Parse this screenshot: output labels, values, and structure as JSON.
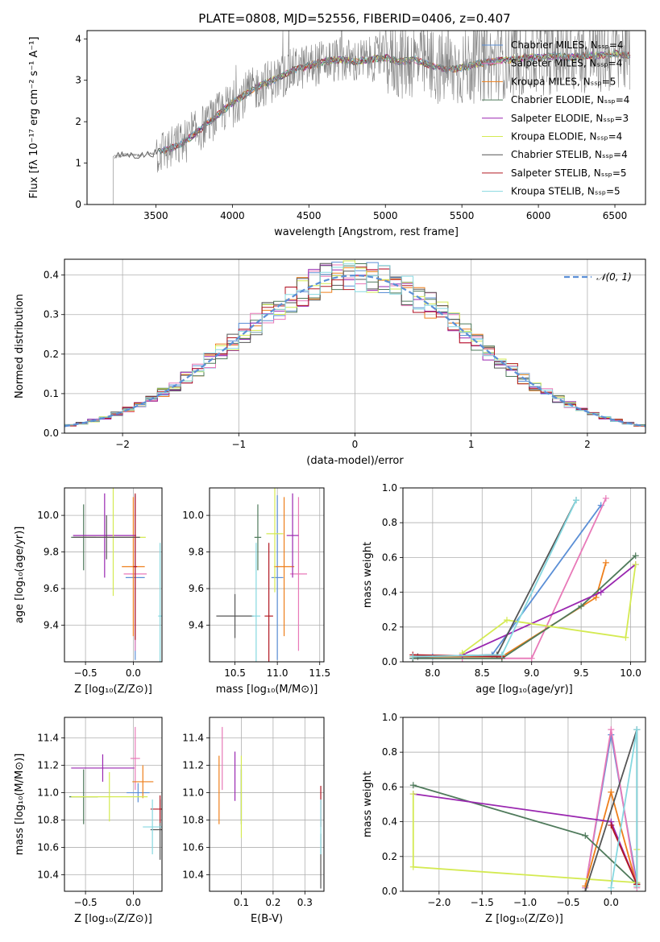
{
  "figure": {
    "title": "PLATE=0808, MJD=52556, FIBERID=0406, z=0.407"
  },
  "colors": {
    "Chabrier MILES": "#5b8fd6",
    "Salpeter MILES": "#e879b8",
    "Kroupa MILES": "#ee7f1b",
    "Chabrier ELODIE": "#4f7a5b",
    "Salpeter ELODIE": "#9a27b0",
    "Kroupa ELODIE": "#d4ea52",
    "Chabrier STELIB": "#555555",
    "Salpeter STELIB": "#b21a24",
    "Kroupa STELIB": "#86d8e0",
    "data": "#808080",
    "normal": "#5b8fd6"
  },
  "chart_data": [
    {
      "id": "spectrum",
      "type": "line",
      "xlabel": "wavelength [Angstrom, rest frame]",
      "ylabel": "Flux [fλ 10⁻¹⁷ erg cm⁻² s⁻¹ A⁻¹]",
      "xlim": [
        3050,
        6700
      ],
      "ylim": [
        0,
        4.2
      ],
      "xticks": [
        "3500",
        "4000",
        "4500",
        "5000",
        "5500",
        "6000",
        "6500"
      ],
      "yticks": [
        "0",
        "1",
        "2",
        "3",
        "4"
      ],
      "legend_position": "upper right",
      "series": [
        {
          "name": "Chabrier MILES, N_SSP=4"
        },
        {
          "name": "Salpeter MILES, N_SSP=4"
        },
        {
          "name": "Kroupa MILES, N_SSP=5"
        },
        {
          "name": "Chabrier ELODIE, N_SSP=4"
        },
        {
          "name": "Salpeter ELODIE, N_SSP=3"
        },
        {
          "name": "Kroupa ELODIE, N_SSP=4"
        },
        {
          "name": "Chabrier STELIB, N_SSP=4"
        },
        {
          "name": "Salpeter STELIB, N_SSP=5"
        },
        {
          "name": "Kroupa STELIB, N_SSP=5"
        }
      ],
      "data_envelope": {
        "x": [
          3220,
          3300,
          3400,
          3500,
          3600,
          3700,
          3800,
          3900,
          4000,
          4100,
          4200,
          4300,
          4400,
          4500,
          4600,
          4700,
          4800,
          4900,
          5000,
          5100,
          5200,
          5300,
          5400,
          5500,
          5600,
          5700,
          5800,
          5900,
          6000,
          6100,
          6200,
          6300,
          6400,
          6500,
          6600
        ],
        "y": [
          1.15,
          1.2,
          1.18,
          1.25,
          1.35,
          1.55,
          1.85,
          2.15,
          2.45,
          2.7,
          2.9,
          3.05,
          3.25,
          3.35,
          3.45,
          3.5,
          3.45,
          3.5,
          3.55,
          3.45,
          3.5,
          3.35,
          3.25,
          3.3,
          3.4,
          3.45,
          3.5,
          3.55,
          3.55,
          3.6,
          3.55,
          3.6,
          3.6,
          3.65,
          3.6
        ]
      }
    },
    {
      "id": "residuals",
      "type": "step",
      "xlabel": "(data-model)/error",
      "ylabel": "Normed distribution",
      "xlim": [
        -2.5,
        2.5
      ],
      "ylim": [
        0,
        0.44
      ],
      "xticks": [
        "−2",
        "−1",
        "0",
        "1",
        "2"
      ],
      "yticks": [
        "0.0",
        "0.1",
        "0.2",
        "0.3",
        "0.4"
      ],
      "legend": "𝒩(0, 1)",
      "legend_position": "upper right",
      "bin_width": 0.1
    },
    {
      "id": "age_vs_Z",
      "type": "errorbar",
      "xlabel": "Z [log₁₀(Z/Z⊙)]",
      "ylabel": "age  [log₁₀(age/yr)]",
      "xlim": [
        -0.72,
        0.3
      ],
      "ylim": [
        9.2,
        10.15
      ],
      "xticks": [
        "−0.5",
        "0.0"
      ],
      "yticks": [
        "9.4",
        "9.6",
        "9.8",
        "10.0"
      ],
      "points": [
        {
          "model": "Chabrier MILES",
          "x": 0.02,
          "y": 9.66,
          "xerr": 0.1,
          "yerr": 0.45
        },
        {
          "model": "Salpeter MILES",
          "x": 0.02,
          "y": 9.68,
          "xerr": 0.12,
          "yerr": 0.42
        },
        {
          "model": "Kroupa MILES",
          "x": 0.0,
          "y": 9.72,
          "xerr": 0.12,
          "yerr": 0.38
        },
        {
          "model": "Chabrier ELODIE",
          "x": -0.52,
          "y": 9.88,
          "xerr": 0.13,
          "yerr": 0.18
        },
        {
          "model": "Salpeter ELODIE",
          "x": -0.3,
          "y": 9.89,
          "xerr": 0.33,
          "yerr": 0.23
        },
        {
          "model": "Kroupa ELODIE",
          "x": -0.21,
          "y": 9.88,
          "xerr": 0.34,
          "yerr": 0.32
        },
        {
          "model": "Chabrier STELIB",
          "x": -0.28,
          "y": 9.88,
          "xerr": 0.35,
          "yerr": 0.12
        },
        {
          "model": "Salpeter STELIB",
          "x": 0.02,
          "y": 9.72,
          "xerr": 0.02,
          "yerr": 0.4
        },
        {
          "model": "Kroupa STELIB",
          "x": 0.28,
          "y": 9.45,
          "xerr": 0.02,
          "yerr": 0.4
        }
      ]
    },
    {
      "id": "age_vs_mass",
      "type": "errorbar",
      "xlabel": "mass [log₁₀(M/M⊙)]",
      "xlim": [
        10.2,
        11.55
      ],
      "ylim": [
        9.2,
        10.15
      ],
      "xticks": [
        "10.5",
        "11.0",
        "11.5"
      ],
      "yticks": [
        "9.4",
        "9.6",
        "9.8",
        "10.0"
      ],
      "points": [
        {
          "model": "Chabrier MILES",
          "x": 11.0,
          "y": 9.66,
          "xerr": 0.07,
          "yerr": 0.45
        },
        {
          "model": "Salpeter MILES",
          "x": 11.25,
          "y": 9.68,
          "xerr": 0.1,
          "yerr": 0.42
        },
        {
          "model": "Kroupa MILES",
          "x": 11.08,
          "y": 9.72,
          "xerr": 0.12,
          "yerr": 0.38
        },
        {
          "model": "Chabrier ELODIE",
          "x": 10.77,
          "y": 9.88,
          "xerr": 0.04,
          "yerr": 0.18
        },
        {
          "model": "Salpeter ELODIE",
          "x": 11.18,
          "y": 9.89,
          "xerr": 0.07,
          "yerr": 0.23
        },
        {
          "model": "Kroupa ELODIE",
          "x": 10.97,
          "y": 9.9,
          "xerr": 0.1,
          "yerr": 0.32
        },
        {
          "model": "Chabrier STELIB",
          "x": 10.5,
          "y": 9.45,
          "xerr": 0.22,
          "yerr": 0.12
        },
        {
          "model": "Salpeter STELIB",
          "x": 10.9,
          "y": 9.45,
          "xerr": 0.05,
          "yerr": 0.4
        },
        {
          "model": "Kroupa STELIB",
          "x": 10.75,
          "y": 9.45,
          "xerr": 0.05,
          "yerr": 0.4
        }
      ]
    },
    {
      "id": "weight_vs_age",
      "type": "line",
      "xlabel": "age  [log₁₀(age/yr)]",
      "ylabel": "mass weight",
      "xlim": [
        7.7,
        10.15
      ],
      "ylim": [
        0,
        1.0
      ],
      "xticks": [
        "8.0",
        "8.5",
        "9.0",
        "9.5",
        "10.0"
      ],
      "yticks": [
        "0.0",
        "0.2",
        "0.4",
        "0.6",
        "0.8",
        "1.0"
      ],
      "series": [
        {
          "model": "Chabrier MILES",
          "x": [
            7.8,
            8.0,
            8.6,
            9.7
          ],
          "y": [
            0.02,
            0.03,
            0.04,
            0.9
          ]
        },
        {
          "model": "Salpeter MILES",
          "x": [
            7.8,
            8.3,
            9.0,
            9.75
          ],
          "y": [
            0.02,
            0.02,
            0.02,
            0.94
          ]
        },
        {
          "model": "Kroupa MILES",
          "x": [
            7.8,
            8.7,
            9.65,
            9.75
          ],
          "y": [
            0.03,
            0.03,
            0.37,
            0.57
          ]
        },
        {
          "model": "Chabrier ELODIE",
          "x": [
            7.8,
            8.7,
            9.5,
            10.05
          ],
          "y": [
            0.02,
            0.02,
            0.32,
            0.61
          ]
        },
        {
          "model": "Salpeter ELODIE",
          "x": [
            8.3,
            9.7,
            10.05
          ],
          "y": [
            0.04,
            0.4,
            0.56
          ]
        },
        {
          "model": "Kroupa ELODIE",
          "x": [
            8.3,
            8.75,
            9.95,
            10.05
          ],
          "y": [
            0.05,
            0.24,
            0.14,
            0.56
          ]
        },
        {
          "model": "Chabrier STELIB",
          "x": [
            7.85,
            8.65,
            9.45
          ],
          "y": [
            0.03,
            0.04,
            0.93
          ]
        },
        {
          "model": "Salpeter STELIB",
          "x": [
            7.8,
            8.7
          ],
          "y": [
            0.04,
            0.03
          ]
        },
        {
          "model": "Kroupa STELIB",
          "x": [
            7.8,
            8.7,
            9.45
          ],
          "y": [
            0.03,
            0.04,
            0.93
          ]
        }
      ]
    },
    {
      "id": "mass_vs_Z",
      "type": "errorbar",
      "xlabel": "Z [log₁₀(Z/Z⊙)]",
      "ylabel": "mass [log₁₀(M/M⊙)]",
      "xlim": [
        -0.72,
        0.3
      ],
      "ylim": [
        10.28,
        11.55
      ],
      "xticks": [
        "−0.5",
        "0.0"
      ],
      "yticks": [
        "10.4",
        "10.6",
        "10.8",
        "11.0",
        "11.2",
        "11.4"
      ],
      "points": [
        {
          "model": "Chabrier MILES",
          "x": 0.05,
          "y": 11.0,
          "xerr": 0.12,
          "yerr": 0.07
        },
        {
          "model": "Salpeter MILES",
          "x": 0.02,
          "y": 11.25,
          "xerr": 0.05,
          "yerr": 0.23
        },
        {
          "model": "Kroupa MILES",
          "x": 0.1,
          "y": 11.08,
          "xerr": 0.11,
          "yerr": 0.12
        },
        {
          "model": "Chabrier ELODIE",
          "x": -0.52,
          "y": 10.97,
          "xerr": 0.15,
          "yerr": 0.2
        },
        {
          "model": "Salpeter ELODIE",
          "x": -0.32,
          "y": 11.18,
          "xerr": 0.33,
          "yerr": 0.1
        },
        {
          "model": "Kroupa ELODIE",
          "x": -0.25,
          "y": 10.97,
          "xerr": 0.4,
          "yerr": 0.18
        },
        {
          "model": "Chabrier STELIB",
          "x": 0.28,
          "y": 10.73,
          "xerr": 0.1,
          "yerr": 0.22
        },
        {
          "model": "Salpeter STELIB",
          "x": 0.28,
          "y": 10.88,
          "xerr": 0.1,
          "yerr": 0.1
        },
        {
          "model": "Kroupa STELIB",
          "x": 0.2,
          "y": 10.75,
          "xerr": 0.1,
          "yerr": 0.2
        }
      ]
    },
    {
      "id": "mass_vs_ebv",
      "type": "errorbar",
      "xlabel": "E(B-V)",
      "xlim": [
        0.0,
        0.36
      ],
      "ylim": [
        10.28,
        11.55
      ],
      "xticks": [
        "0.1",
        "0.2",
        "0.3"
      ],
      "yticks": [
        "10.4",
        "10.6",
        "10.8",
        "11.0",
        "11.2",
        "11.4"
      ],
      "points": [
        {
          "model": "Chabrier MILES",
          "x": 0.1,
          "y": 11.0,
          "xerr": 0.0,
          "yerr": 0.2
        },
        {
          "model": "Salpeter MILES",
          "x": 0.04,
          "y": 11.25,
          "xerr": 0.0,
          "yerr": 0.23
        },
        {
          "model": "Kroupa MILES",
          "x": 0.03,
          "y": 11.02,
          "xerr": 0.0,
          "yerr": 0.25
        },
        {
          "model": "Chabrier ELODIE",
          "x": 0.1,
          "y": 10.97,
          "xerr": 0.0,
          "yerr": 0.2
        },
        {
          "model": "Salpeter ELODIE",
          "x": 0.08,
          "y": 11.12,
          "xerr": 0.0,
          "yerr": 0.18
        },
        {
          "model": "Kroupa ELODIE",
          "x": 0.1,
          "y": 10.97,
          "xerr": 0.0,
          "yerr": 0.3
        },
        {
          "model": "Chabrier STELIB",
          "x": 0.35,
          "y": 10.5,
          "xerr": 0.0,
          "yerr": 0.2
        },
        {
          "model": "Salpeter STELIB",
          "x": 0.35,
          "y": 10.9,
          "xerr": 0.0,
          "yerr": 0.15
        },
        {
          "model": "Kroupa STELIB",
          "x": 0.35,
          "y": 10.75,
          "xerr": 0.0,
          "yerr": 0.2
        }
      ]
    },
    {
      "id": "weight_vs_Z",
      "type": "line",
      "xlabel": "Z [log₁₀(Z/Z⊙)]",
      "ylabel": "mass weight",
      "xlim": [
        -2.42,
        0.4
      ],
      "ylim": [
        0,
        1.0
      ],
      "xticks": [
        "−2.0",
        "−1.5",
        "−1.0",
        "−0.5",
        "0.0"
      ],
      "yticks": [
        "0.0",
        "0.2",
        "0.4",
        "0.6",
        "0.8",
        "1.0"
      ],
      "series": [
        {
          "model": "Chabrier MILES",
          "x": [
            -0.3,
            0.0,
            0.3
          ],
          "y": [
            0.02,
            0.9,
            0.05
          ]
        },
        {
          "model": "Salpeter MILES",
          "x": [
            -0.3,
            0.0,
            0.3
          ],
          "y": [
            0.02,
            0.93,
            0.02
          ]
        },
        {
          "model": "Kroupa MILES",
          "x": [
            -0.3,
            0.0,
            0.3
          ],
          "y": [
            0.03,
            0.57,
            0.03
          ]
        },
        {
          "model": "Chabrier ELODIE",
          "x": [
            -2.3,
            -0.3,
            0.3
          ],
          "y": [
            0.61,
            0.32,
            0.04
          ]
        },
        {
          "model": "Salpeter ELODIE",
          "x": [
            -2.3,
            0.0,
            0.3
          ],
          "y": [
            0.56,
            0.4,
            0.04
          ]
        },
        {
          "model": "Kroupa ELODIE",
          "x": [
            -2.3,
            -2.3,
            0.3,
            0.3
          ],
          "y": [
            0.56,
            0.14,
            0.05,
            0.24
          ]
        },
        {
          "model": "Chabrier STELIB",
          "x": [
            -0.3,
            0.3,
            0.3
          ],
          "y": [
            0.0,
            0.93,
            0.04
          ]
        },
        {
          "model": "Salpeter STELIB",
          "x": [
            0.0,
            0.3
          ],
          "y": [
            0.38,
            0.04
          ]
        },
        {
          "model": "Kroupa STELIB",
          "x": [
            0.0,
            0.3,
            0.3
          ],
          "y": [
            0.02,
            0.93,
            0.03
          ]
        }
      ]
    }
  ]
}
